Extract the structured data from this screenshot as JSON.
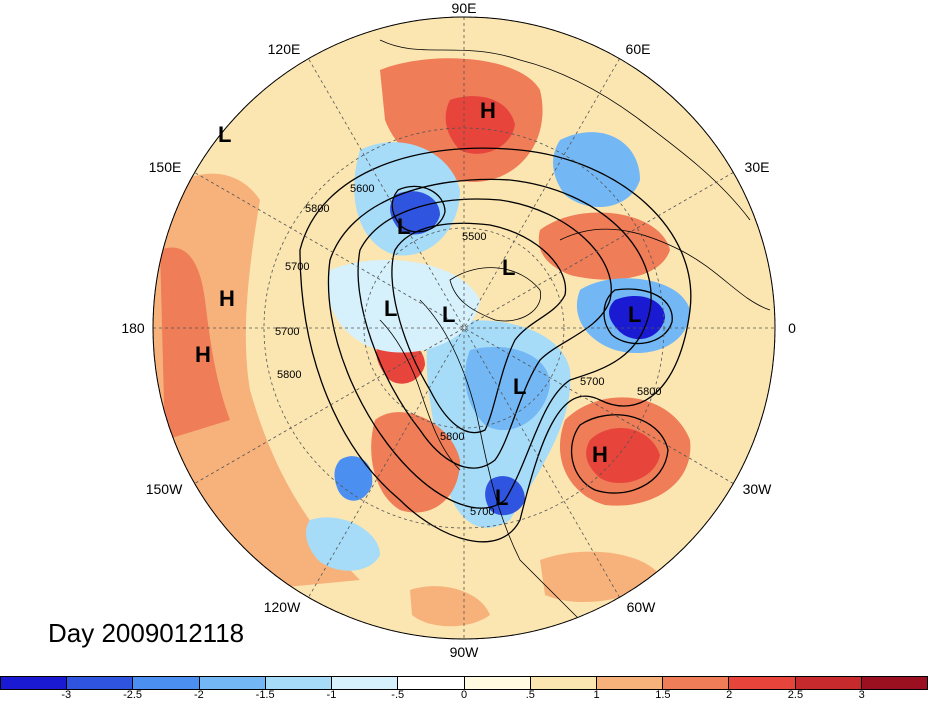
{
  "title": "Day 2009012118",
  "map": {
    "projection": "north-polar-stereographic",
    "longitude_labels": [
      "90E",
      "60E",
      "30E",
      "0",
      "30W",
      "60W",
      "90W",
      "120W",
      "150W",
      "180",
      "150E",
      "120E"
    ],
    "pressure_centers": [
      {
        "label": "H",
        "region": "Siberia"
      },
      {
        "label": "L",
        "region": "NW Pacific"
      },
      {
        "label": "L",
        "region": "Sea of Okhotsk"
      },
      {
        "label": "L",
        "region": "Kamchatka"
      },
      {
        "label": "L",
        "region": "Arctic"
      },
      {
        "label": "L",
        "region": "Canadian Archipelago"
      },
      {
        "label": "L",
        "region": "Hudson Bay"
      },
      {
        "label": "L",
        "region": "Eastern US"
      },
      {
        "label": "L",
        "region": "NE Atlantic"
      },
      {
        "label": "H",
        "region": "Central Pacific"
      },
      {
        "label": "H",
        "region": "Subtropical Pacific"
      },
      {
        "label": "H",
        "region": "Central Atlantic"
      }
    ],
    "contour_labels": [
      "5800",
      "5700",
      "5600",
      "5500",
      "5700",
      "5800",
      "5700",
      "5800",
      "5700",
      "5800"
    ],
    "colors": {
      "neg3": "#1a1ad2",
      "neg25": "#2f55e0",
      "neg2": "#4b8ff0",
      "neg15": "#73b8f5",
      "neg1": "#a6dcf8",
      "neg05": "#d6f1fb",
      "pos0": "#fffae0",
      "pos05": "#fbe6b2",
      "pos1": "#f7b27c",
      "pos15": "#ef7d57",
      "pos2": "#e7443c",
      "pos25": "#c62a2c",
      "pos3": "#9a1020"
    }
  },
  "colorbar": {
    "ticks": [
      "-3",
      "-2.5",
      "-2",
      "-1.5",
      "-1",
      "-.5",
      "0",
      ".5",
      "1",
      "1.5",
      "2",
      "2.5",
      "3"
    ],
    "colors": [
      "#1a1ad2",
      "#2f55e0",
      "#4b8ff0",
      "#73b8f5",
      "#a6dcf8",
      "#d6f1fb",
      "#ffffff",
      "#fffae0",
      "#fbe6b2",
      "#f7b27c",
      "#ef7d57",
      "#e7443c",
      "#c62a2c",
      "#9a1020"
    ]
  }
}
